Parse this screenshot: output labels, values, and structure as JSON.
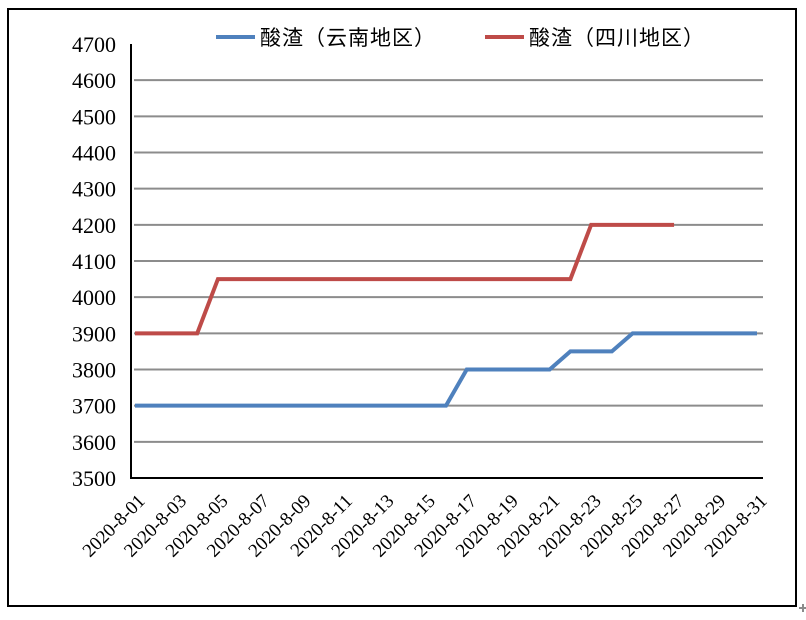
{
  "chart_data": {
    "type": "line",
    "title": "",
    "xlabel": "",
    "ylabel": "",
    "ylim": [
      3500,
      4700
    ],
    "y_ticks": [
      3500,
      3600,
      3700,
      3800,
      3900,
      4000,
      4100,
      4200,
      4300,
      4400,
      4500,
      4600,
      4700
    ],
    "grid": true,
    "legend_position": "top",
    "x": [
      1,
      2,
      3,
      4,
      5,
      6,
      7,
      8,
      9,
      10,
      11,
      12,
      13,
      14,
      15,
      16,
      17,
      18,
      19,
      20,
      21,
      22,
      23,
      24,
      25,
      26,
      27,
      28,
      29,
      30,
      31
    ],
    "x_tick_days": [
      1,
      3,
      5,
      7,
      9,
      11,
      13,
      15,
      17,
      19,
      21,
      23,
      25,
      27,
      29,
      31
    ],
    "x_tick_labels": [
      "2020-8-01",
      "2020-8-03",
      "2020-8-05",
      "2020-8-07",
      "2020-8-09",
      "2020-8-11",
      "2020-8-13",
      "2020-8-15",
      "2020-8-17",
      "2020-8-19",
      "2020-8-21",
      "2020-8-23",
      "2020-8-25",
      "2020-8-27",
      "2020-8-29",
      "2020-8-31"
    ],
    "series": [
      {
        "name": "酸渣（云南地区）",
        "color": "#4F81BD",
        "values": [
          3700,
          3700,
          3700,
          3700,
          3700,
          3700,
          3700,
          3700,
          3700,
          3700,
          3700,
          3700,
          3700,
          3700,
          3700,
          3700,
          3800,
          3800,
          3800,
          3800,
          3800,
          3850,
          3850,
          3850,
          3900,
          3900,
          3900,
          3900,
          3900,
          3900,
          3900
        ]
      },
      {
        "name": "酸渣（四川地区）",
        "color": "#BE4B48",
        "values": [
          3900,
          3900,
          3900,
          3900,
          4050,
          4050,
          4050,
          4050,
          4050,
          4050,
          4050,
          4050,
          4050,
          4050,
          4050,
          4050,
          4050,
          4050,
          4050,
          4050,
          4050,
          4050,
          4200,
          4200,
          4200,
          4200,
          4200
        ]
      }
    ],
    "colors": {
      "gridline": "#8C8C8C",
      "axis": "#000000",
      "text": "#000000",
      "background": "#FFFFFF"
    }
  }
}
